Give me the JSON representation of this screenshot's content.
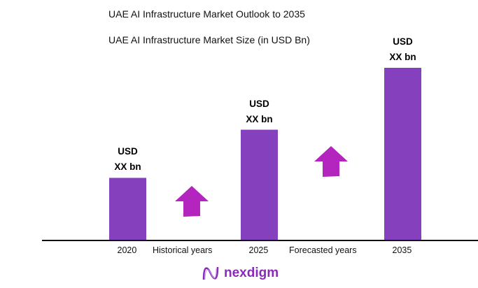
{
  "title": "UAE AI Infrastructure Market Outlook to 2035",
  "subtitle": "UAE AI Infrastructure Market Size (in USD Bn)",
  "chart_data": {
    "type": "bar",
    "categories": [
      "2020",
      "2025",
      "2035"
    ],
    "values_relative": [
      0.36,
      0.64,
      1.0
    ],
    "data_labels": [
      [
        "USD",
        "XX bn"
      ],
      [
        "USD",
        "XX bn"
      ],
      [
        "USD",
        "XX bn"
      ]
    ],
    "annotations": [
      "Historical years",
      "Forecasted years"
    ],
    "bar_color": "#8540bd",
    "arrow_color": "#b325be",
    "grid": false
  },
  "logo": {
    "text": "nexdigm"
  }
}
